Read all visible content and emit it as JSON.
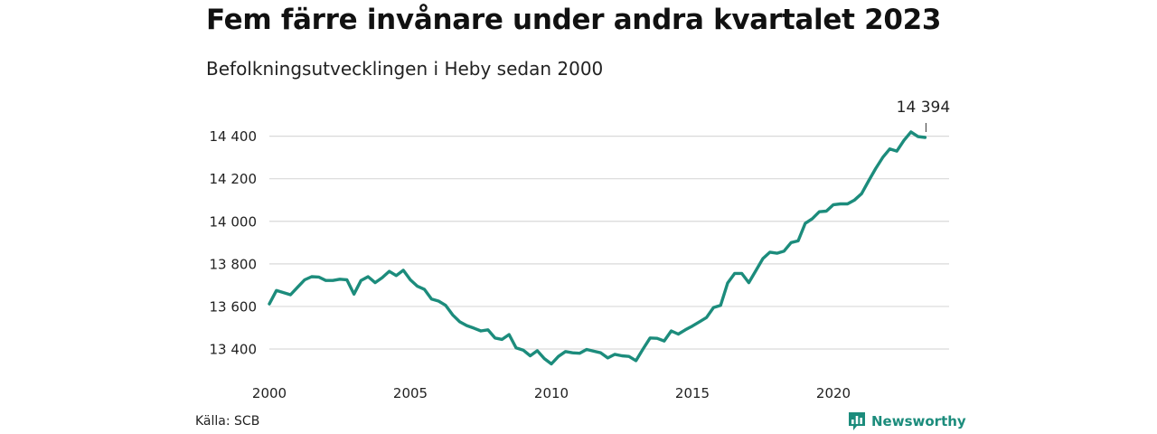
{
  "header": {
    "title": "Fem färre invånare under andra kvartalet 2023",
    "subtitle": "Befolkningsutvecklingen i Heby sedan 2000"
  },
  "footer": {
    "source": "Källa: SCB",
    "brand": "Newsworthy",
    "brand_icon": "newsworthy-chart-logo-icon"
  },
  "colors": {
    "line": "#1c8c7c",
    "grid": "#d9d9d9",
    "brand": "#1c8c7c"
  },
  "chart_data": {
    "type": "line",
    "title": "Fem färre invånare under andra kvartalet 2023",
    "subtitle": "Befolkningsutvecklingen i Heby sedan 2000",
    "xlabel": "",
    "ylabel": "",
    "xlim": [
      2000,
      2024
    ],
    "ylim": [
      13300,
      14500
    ],
    "x_ticks": [
      2000,
      2005,
      2010,
      2015,
      2020
    ],
    "x_tick_labels": [
      "2000",
      "2005",
      "2010",
      "2015",
      "2020"
    ],
    "y_ticks": [
      13400,
      13600,
      13800,
      14000,
      14200,
      14400
    ],
    "y_tick_labels": [
      "13 400",
      "13 600",
      "13 800",
      "14 000",
      "14 200",
      "14 400"
    ],
    "grid": true,
    "annotation": {
      "label": "14 394",
      "x": 2023.25,
      "y": 14394
    },
    "series": [
      {
        "x": [
          2000.0,
          2000.25,
          2000.5,
          2000.75,
          2001.0,
          2001.25,
          2001.5,
          2001.75,
          2002.0,
          2002.25,
          2002.5,
          2002.75,
          2003.0,
          2003.25,
          2003.5,
          2003.75,
          2004.0,
          2004.25,
          2004.5,
          2004.75,
          2005.0,
          2005.25,
          2005.5,
          2005.75,
          2006.0,
          2006.25,
          2006.5,
          2006.75,
          2007.0,
          2007.25,
          2007.5,
          2007.75,
          2008.0,
          2008.25,
          2008.5,
          2008.75,
          2009.0,
          2009.25,
          2009.5,
          2009.75,
          2010.0,
          2010.25,
          2010.5,
          2010.75,
          2011.0,
          2011.25,
          2011.5,
          2011.75,
          2012.0,
          2012.25,
          2012.5,
          2012.75,
          2013.0,
          2013.25,
          2013.5,
          2013.75,
          2014.0,
          2014.25,
          2014.5,
          2014.75,
          2015.0,
          2015.25,
          2015.5,
          2015.75,
          2016.0,
          2016.25,
          2016.5,
          2016.75,
          2017.0,
          2017.25,
          2017.5,
          2017.75,
          2018.0,
          2018.25,
          2018.5,
          2018.75,
          2019.0,
          2019.25,
          2019.5,
          2019.75,
          2020.0,
          2020.25,
          2020.5,
          2020.75,
          2021.0,
          2021.25,
          2021.5,
          2021.75,
          2022.0,
          2022.25,
          2022.5,
          2022.75,
          2023.0,
          2023.25
        ],
        "values": [
          13612,
          13675,
          13665,
          13655,
          13690,
          13725,
          13740,
          13738,
          13722,
          13722,
          13728,
          13725,
          13658,
          13722,
          13740,
          13712,
          13735,
          13765,
          13745,
          13770,
          13725,
          13695,
          13680,
          13635,
          13625,
          13605,
          13560,
          13528,
          13510,
          13498,
          13485,
          13490,
          13452,
          13445,
          13468,
          13405,
          13395,
          13368,
          13392,
          13355,
          13330,
          13365,
          13388,
          13382,
          13380,
          13398,
          13390,
          13382,
          13358,
          13375,
          13368,
          13365,
          13345,
          13400,
          13452,
          13450,
          13438,
          13485,
          13470,
          13490,
          13508,
          13528,
          13548,
          13595,
          13605,
          13710,
          13755,
          13755,
          13712,
          13768,
          13825,
          13855,
          13850,
          13860,
          13900,
          13908,
          13990,
          14012,
          14045,
          14048,
          14078,
          14082,
          14082,
          14100,
          14130,
          14190,
          14248,
          14300,
          14340,
          14330,
          14380,
          14420,
          14398,
          14394
        ]
      }
    ]
  }
}
